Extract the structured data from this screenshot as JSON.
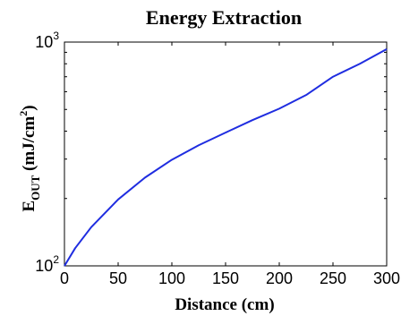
{
  "chart_data": {
    "type": "line",
    "title": "Energy Extraction",
    "xlabel": "Distance (cm)",
    "ylabel": {
      "base": "E",
      "subscript": "OUT",
      "unit_prefix": " (mJ/cm",
      "unit_exponent": "2",
      "unit_suffix": ")"
    },
    "xlim": [
      0,
      300
    ],
    "ylim": [
      100,
      1000
    ],
    "yscale": "log",
    "xticks": [
      0,
      50,
      100,
      150,
      200,
      250,
      300
    ],
    "xtick_labels": [
      "0",
      "50",
      "100",
      "150",
      "200",
      "250",
      "300"
    ],
    "yticks": [
      {
        "value": 100,
        "base": "10",
        "exponent": "2"
      },
      {
        "value": 1000,
        "base": "10",
        "exponent": "3"
      }
    ],
    "grid": false,
    "series": [
      {
        "color": "#1f2de0",
        "x": [
          0,
          10,
          25,
          50,
          75,
          100,
          125,
          150,
          175,
          200,
          225,
          250,
          275,
          300
        ],
        "y": [
          100,
          120,
          149,
          198,
          248,
          298,
          346,
          394,
          448,
          504,
          580,
          700,
          800,
          930
        ]
      }
    ]
  }
}
